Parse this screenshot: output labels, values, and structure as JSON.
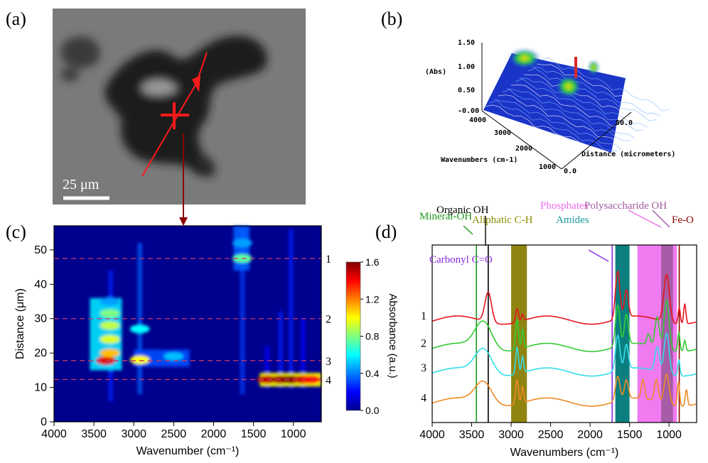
{
  "panels": {
    "a": "(a)",
    "b": "(b)",
    "c": "(c)",
    "d": "(d)"
  },
  "panel_a": {
    "scale_label": "25 μm",
    "colors": {
      "background": "#7d7d7d",
      "particle": "#1c1c1c",
      "line": "#ff1a1a",
      "arrow_down": "#8b0000"
    }
  },
  "chart_data": [
    {
      "type": "surface",
      "panel": "b",
      "zlabel": "(Abs)",
      "xlabel": "Wavenumbers (cm-1)",
      "ylabel": "Distance (micrometers)",
      "z_ticks": [
        "1.50",
        "1.00",
        "0.50",
        "-0.00"
      ],
      "x_ticks": [
        "4000",
        "3000",
        "2000",
        "1000"
      ],
      "y_ticks": [
        "0.0",
        "50.0"
      ],
      "zlim": [
        0,
        1.6
      ]
    },
    {
      "type": "heatmap",
      "panel": "c",
      "xlabel": "Wavenumber (cm⁻¹)",
      "ylabel": "Distance (μm)",
      "xlim": [
        4000,
        650
      ],
      "ylim": [
        0,
        57
      ],
      "x_ticks": [
        4000,
        3500,
        3000,
        2500,
        2000,
        1500,
        1000
      ],
      "y_ticks": [
        0,
        10,
        20,
        30,
        40,
        50
      ],
      "colorbar": {
        "label": "Absorbance (a.u.)",
        "range": [
          0,
          1.6
        ],
        "ticks": [
          "0.0",
          "0.4",
          "0.8",
          "1.2",
          "1.6"
        ]
      },
      "lines": [
        {
          "label": "1",
          "distance": 47.5
        },
        {
          "label": "2",
          "distance": 30
        },
        {
          "label": "3",
          "distance": 17.8
        },
        {
          "label": "4",
          "distance": 12.3
        }
      ],
      "hotspots": [
        {
          "wavenumber": 3350,
          "distance": 17.8,
          "value": 1.45
        },
        {
          "wavenumber": 3300,
          "distance": 20,
          "value": 1.1
        },
        {
          "wavenumber": 3300,
          "distance": 24,
          "value": 0.95
        },
        {
          "wavenumber": 3300,
          "distance": 28,
          "value": 0.9
        },
        {
          "wavenumber": 3300,
          "distance": 31.5,
          "value": 0.8
        },
        {
          "wavenumber": 3300,
          "distance": 35,
          "value": 0.45
        },
        {
          "wavenumber": 2925,
          "distance": 18,
          "value": 1.0
        },
        {
          "wavenumber": 2925,
          "distance": 27,
          "value": 0.6
        },
        {
          "wavenumber": 2500,
          "distance": 19,
          "value": 0.5
        },
        {
          "wavenumber": 1640,
          "distance": 47.5,
          "value": 0.75
        },
        {
          "wavenumber": 1640,
          "distance": 52,
          "value": 0.45
        },
        {
          "wavenumber": 1330,
          "distance": 12.3,
          "value": 1.5
        },
        {
          "wavenumber": 1160,
          "distance": 12.3,
          "value": 1.55
        },
        {
          "wavenumber": 1030,
          "distance": 12.3,
          "value": 1.6
        },
        {
          "wavenumber": 880,
          "distance": 12.3,
          "value": 1.5
        },
        {
          "wavenumber": 780,
          "distance": 12.3,
          "value": 1.4
        }
      ]
    },
    {
      "type": "line",
      "panel": "d",
      "xlabel": "Wavenumbers (cm⁻¹)",
      "xlim": [
        4000,
        650
      ],
      "x_ticks": [
        4000,
        3500,
        3000,
        2500,
        2000,
        1500,
        1000
      ],
      "series": [
        {
          "name": "1",
          "color": "#e8141c",
          "offset": 0.75,
          "peaks": [
            [
              3290,
              0.22,
              60
            ],
            [
              2925,
              0.1,
              25
            ],
            [
              2855,
              0.05,
              20
            ],
            [
              1650,
              0.35,
              40
            ],
            [
              1540,
              0.2,
              35
            ],
            [
              1030,
              0.35,
              50
            ],
            [
              870,
              0.12,
              20
            ],
            [
              800,
              0.15,
              20
            ]
          ]
        },
        {
          "name": "2",
          "color": "#33cc33",
          "offset": 0.55,
          "peaks": [
            [
              3350,
              0.2,
              150
            ],
            [
              2925,
              0.22,
              25
            ],
            [
              2855,
              0.14,
              20
            ],
            [
              1650,
              0.3,
              40
            ],
            [
              1540,
              0.22,
              35
            ],
            [
              1260,
              0.08,
              30
            ],
            [
              1150,
              0.22,
              40
            ],
            [
              1030,
              0.36,
              45
            ],
            [
              875,
              0.14,
              20
            ],
            [
              800,
              0.08,
              20
            ]
          ]
        },
        {
          "name": "3",
          "color": "#33dde8",
          "offset": 0.37,
          "peaks": [
            [
              3350,
              0.18,
              150
            ],
            [
              2925,
              0.2,
              25
            ],
            [
              2855,
              0.12,
              20
            ],
            [
              1650,
              0.26,
              40
            ],
            [
              1540,
              0.18,
              35
            ],
            [
              1150,
              0.18,
              40
            ],
            [
              1030,
              0.3,
              45
            ],
            [
              875,
              0.12,
              20
            ]
          ]
        },
        {
          "name": "4",
          "color": "#ef8a24",
          "offset": 0.15,
          "peaks": [
            [
              3350,
              0.16,
              150
            ],
            [
              2925,
              0.18,
              25
            ],
            [
              2855,
              0.12,
              20
            ],
            [
              1650,
              0.18,
              40
            ],
            [
              1540,
              0.14,
              35
            ],
            [
              1330,
              0.14,
              30
            ],
            [
              1160,
              0.16,
              35
            ],
            [
              1030,
              0.22,
              45
            ],
            [
              880,
              0.18,
              20
            ],
            [
              780,
              0.12,
              20
            ]
          ]
        }
      ],
      "bands": [
        {
          "label": "Mineral-OH",
          "color": "#1a9a1a",
          "kind": "line",
          "x": 3440
        },
        {
          "label": "Organic OH",
          "color": "#000000",
          "kind": "line",
          "x": 3290
        },
        {
          "label": "Aliphatic C-H",
          "color": "#8b8b00",
          "kind": "band",
          "x1": 3000,
          "x2": 2800,
          "fill": "#8f8410"
        },
        {
          "label": "Carbonyl C=O",
          "color": "#8a2be2",
          "kind": "line",
          "x": 1720
        },
        {
          "label": "Amides",
          "color": "#1a9a9a",
          "kind": "band",
          "x1": 1680,
          "x2": 1500,
          "fill": "#0b7f7f"
        },
        {
          "label": "Phosphates",
          "color": "#ee6bee",
          "kind": "band",
          "x1": 1400,
          "x2": 900,
          "fill": "#f07af0"
        },
        {
          "label": "Polysaccharide OH",
          "color": "#a05ca0",
          "kind": "band",
          "x1": 1100,
          "x2": 950,
          "fill": "#a65ca6"
        },
        {
          "label": "Fe-O",
          "color": "#8b0000",
          "kind": "line",
          "x": 870
        }
      ]
    }
  ]
}
